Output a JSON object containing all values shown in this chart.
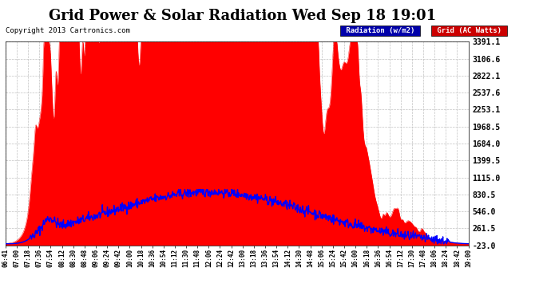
{
  "title": "Grid Power & Solar Radiation Wed Sep 18 19:01",
  "copyright": "Copyright 2013 Cartronics.com",
  "legend_radiation": "Radiation (w/m2)",
  "legend_grid": "Grid (AC Watts)",
  "yticks": [
    -23.0,
    261.5,
    546.0,
    830.5,
    1115.0,
    1399.5,
    1684.0,
    1968.5,
    2253.1,
    2537.6,
    2822.1,
    3106.6,
    3391.1
  ],
  "ymin": -23.0,
  "ymax": 3391.1,
  "background_color": "#ffffff",
  "plot_bg_color": "#ffffff",
  "grid_color": "#bbbbbb",
  "red_color": "#ff0000",
  "blue_color": "#0000ff",
  "legend_blue_bg": "#0000cc",
  "legend_red_bg": "#cc0000",
  "title_fontsize": 13,
  "xtick_labels": [
    "06:41",
    "07:00",
    "07:18",
    "07:36",
    "07:54",
    "08:12",
    "08:30",
    "08:48",
    "09:06",
    "09:24",
    "09:42",
    "10:00",
    "10:18",
    "10:36",
    "10:54",
    "11:12",
    "11:30",
    "11:48",
    "12:06",
    "12:24",
    "12:42",
    "13:00",
    "13:18",
    "13:36",
    "13:54",
    "14:12",
    "14:30",
    "14:48",
    "15:06",
    "15:24",
    "15:42",
    "16:00",
    "16:18",
    "16:36",
    "16:54",
    "17:12",
    "17:30",
    "17:48",
    "18:06",
    "18:24",
    "18:42",
    "19:00"
  ]
}
